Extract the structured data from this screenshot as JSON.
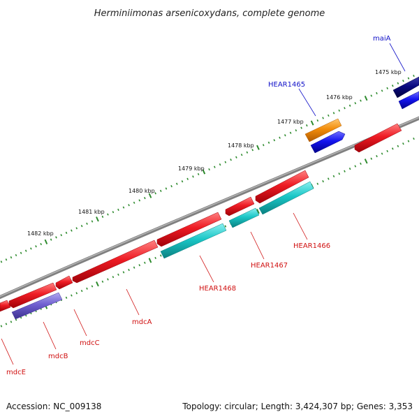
{
  "title": "Herminiimonas arsenicoxydans, complete genome",
  "footer": {
    "accession": "Accession: NC_009138",
    "summary": "Topology: circular; Length: 3,424,307 bp; Genes: 3,353"
  },
  "colors": {
    "backbone": "#7a7a7a",
    "tick": "#2e8b2e",
    "label_forward": "#1010c8",
    "label_reverse": "#d01010",
    "red": "#e60f19",
    "cyan": "#19c8c8",
    "orange": "#f28c0a",
    "blue": "#1414f0",
    "navy": "#0a0a80",
    "purple": "#7060d0"
  },
  "ticks": [
    {
      "label": "1475 kbp"
    },
    {
      "label": "1476 kbp"
    },
    {
      "label": "1477 kbp"
    },
    {
      "label": "1478 kbp"
    },
    {
      "label": "1479 kbp"
    },
    {
      "label": "1480 kbp"
    },
    {
      "label": "1481 kbp"
    },
    {
      "label": "1482 kbp"
    }
  ],
  "gene_labels": [
    {
      "name": "maiA",
      "strand": "forward"
    },
    {
      "name": "HEAR1465",
      "strand": "forward"
    },
    {
      "name": "HEAR1466",
      "strand": "reverse"
    },
    {
      "name": "HEAR1467",
      "strand": "reverse"
    },
    {
      "name": "HEAR1468",
      "strand": "reverse"
    },
    {
      "name": "mdcA",
      "strand": "reverse"
    },
    {
      "name": "mdcC",
      "strand": "reverse"
    },
    {
      "name": "mdcB",
      "strand": "reverse"
    },
    {
      "name": "mdcE",
      "strand": "reverse"
    }
  ]
}
